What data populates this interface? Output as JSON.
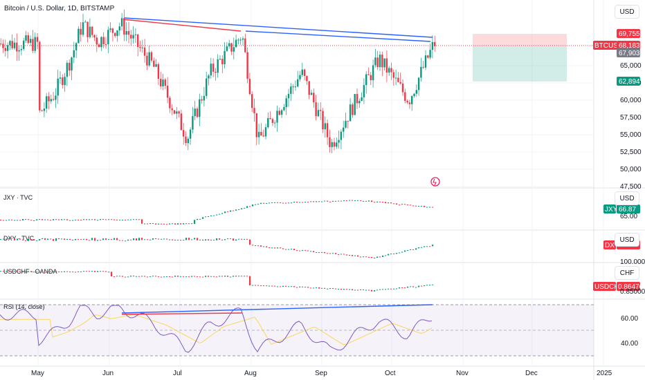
{
  "header": {
    "title": "Bitcoin / U.S. Dollar, 1D, BITSTAMP"
  },
  "axis_currency": {
    "main": "USD",
    "jxy": "USD",
    "dxy": "USD",
    "usdchf": "CHF"
  },
  "colors": {
    "up": "#089981",
    "down": "#f23645",
    "trend_blue": "#2962ff",
    "trend_red": "#f23645",
    "rsi": "#7e57c2",
    "rsi_ma": "#f9d75b",
    "rsi_band": "#7e57c2"
  },
  "panes": {
    "jxy": {
      "label": "JXY · TVC",
      "badge_symbol": "JXY",
      "badge_value": "66.87",
      "tick": "65.00"
    },
    "dxy": {
      "label": "DXY · TVC",
      "badge_symbol": "DXY",
      "tick": "100.000"
    },
    "usdchf": {
      "label": "USDCHF · OANDA",
      "badge_symbol": "USDCHF",
      "badge_value": "0.86476",
      "tick": "0.85000"
    },
    "rsi": {
      "label": "RSI (14, close)",
      "ticks": [
        "60.00",
        "40.00"
      ]
    }
  },
  "main_price_ticks": [
    "65,000",
    "62,500",
    "60,000",
    "57,500",
    "55,000",
    "52,500",
    "50,000",
    "47,500"
  ],
  "price_badges": {
    "target": "69,755",
    "symbol": "BTCUSD",
    "last": "68,183",
    "entry": "67,903",
    "stop": "62,894"
  },
  "time_axis": [
    "May",
    "Jun",
    "Jul",
    "Aug",
    "Sep",
    "Oct",
    "Nov",
    "Dec",
    "2025"
  ],
  "chart_data": {
    "type": "candlestick",
    "series_name": "BTCUSD",
    "interval": "1D",
    "approx_closes": [
      {
        "date": "2024-05-01",
        "close": 58000
      },
      {
        "date": "2024-05-08",
        "close": 61000
      },
      {
        "date": "2024-05-15",
        "close": 66000
      },
      {
        "date": "2024-05-20",
        "close": 71000
      },
      {
        "date": "2024-05-27",
        "close": 68500
      },
      {
        "date": "2024-06-06",
        "close": 71000
      },
      {
        "date": "2024-06-20",
        "close": 65000
      },
      {
        "date": "2024-07-05",
        "close": 54500
      },
      {
        "date": "2024-07-15",
        "close": 64000
      },
      {
        "date": "2024-07-29",
        "close": 69500
      },
      {
        "date": "2024-08-05",
        "close": 54000
      },
      {
        "date": "2024-08-24",
        "close": 64000
      },
      {
        "date": "2024-09-06",
        "close": 53500
      },
      {
        "date": "2024-09-27",
        "close": 66000
      },
      {
        "date": "2024-10-10",
        "close": 60000
      },
      {
        "date": "2024-10-21",
        "close": 68183
      }
    ],
    "rsi_divergence": true,
    "long_position": {
      "target": 69755,
      "entry": 67903,
      "stop": 62894
    }
  }
}
